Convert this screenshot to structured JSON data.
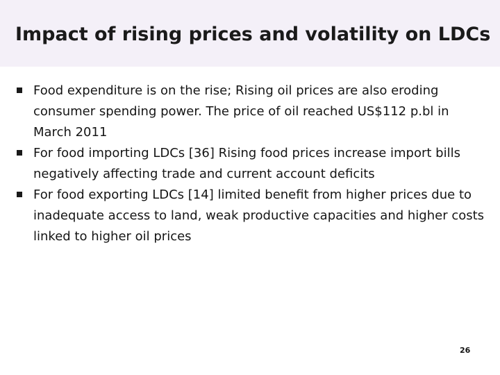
{
  "slide": {
    "title": "Impact of rising prices and volatility on LDCs",
    "bullets": [
      "Food expenditure is on the rise; Rising oil prices are also eroding consumer spending power. The price of oil reached US$112 p.bl in March 2011",
      "For food importing LDCs [36] Rising food prices increase import bills negatively affecting trade and current account deficits",
      "For food exporting LDCs [14] limited benefit from higher prices due to inadequate access to land, weak productive capacities and higher costs linked to higher oil prices"
    ],
    "page_number": "26"
  },
  "colors": {
    "title_band": "#f4f0f8",
    "text": "#1a1a1a"
  }
}
